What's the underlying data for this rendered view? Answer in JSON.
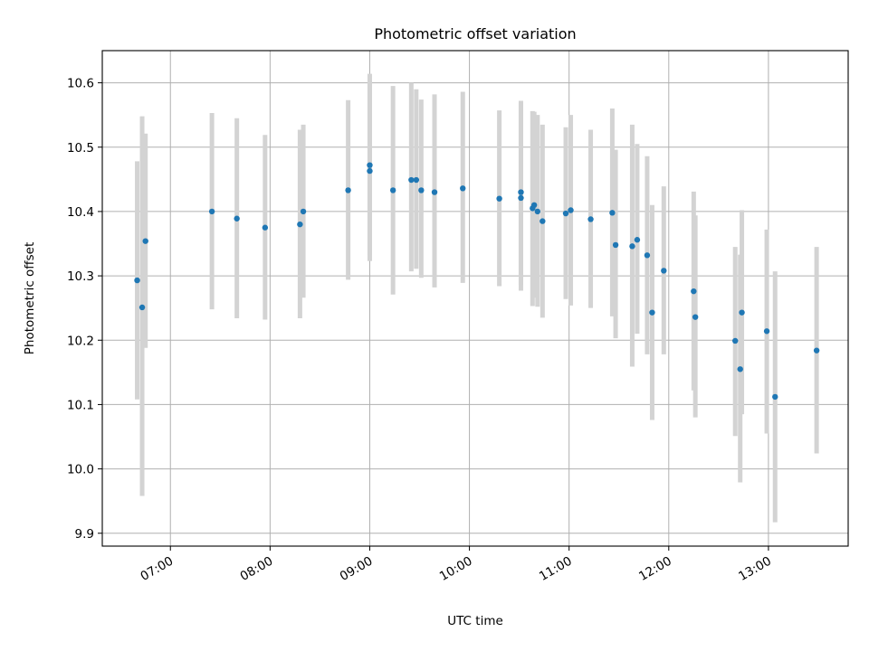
{
  "chart_data": {
    "type": "scatter",
    "title": "Photometric offset variation",
    "xlabel": "UTC time",
    "ylabel": "Photometric offset",
    "x_ticks": [
      "07:00",
      "08:00",
      "09:00",
      "10:00",
      "11:00",
      "12:00",
      "13:00"
    ],
    "y_ticks": [
      "9.9",
      "10.0",
      "10.1",
      "10.2",
      "10.3",
      "10.4",
      "10.5",
      "10.6"
    ],
    "xlim": [
      "06:19",
      "13:48"
    ],
    "ylim": [
      9.88,
      10.65
    ],
    "grid": true,
    "colors": {
      "points": "#1f77b4",
      "errorbars": "#d3d3d3"
    },
    "series": [
      {
        "x": [
          "06:40",
          "06:43",
          "06:45",
          "07:25",
          "07:40",
          "07:57",
          "08:18",
          "08:20",
          "08:47",
          "09:00",
          "09:00",
          "09:14",
          "09:25",
          "09:28",
          "09:31",
          "09:39",
          "09:56",
          "10:18",
          "10:31",
          "10:31",
          "10:38",
          "10:39",
          "10:41",
          "10:44",
          "10:58",
          "11:01",
          "11:13",
          "11:26",
          "11:28",
          "11:38",
          "11:41",
          "11:47",
          "11:50",
          "11:57",
          "12:15",
          "12:16",
          "12:40",
          "12:43",
          "12:44",
          "12:59",
          "13:04",
          "13:29"
        ],
        "y": [
          10.293,
          10.251,
          10.354,
          10.4,
          10.389,
          10.375,
          10.38,
          10.4,
          10.433,
          10.463,
          10.472,
          10.433,
          10.449,
          10.449,
          10.433,
          10.43,
          10.436,
          10.42,
          10.421,
          10.43,
          10.405,
          10.41,
          10.4,
          10.385,
          10.397,
          10.402,
          10.388,
          10.398,
          10.348,
          10.346,
          10.356,
          10.332,
          10.243,
          10.308,
          10.276,
          10.236,
          10.199,
          10.155,
          10.243,
          10.214,
          10.112,
          10.184
        ],
        "yerr_low": [
          10.108,
          9.958,
          10.188,
          10.248,
          10.234,
          10.232,
          10.234,
          10.266,
          10.294,
          10.323,
          10.332,
          10.271,
          10.307,
          10.311,
          10.297,
          10.282,
          10.289,
          10.284,
          10.277,
          10.286,
          10.253,
          10.266,
          10.252,
          10.235,
          10.264,
          10.254,
          10.25,
          10.237,
          10.203,
          10.159,
          10.21,
          10.178,
          10.076,
          10.178,
          10.122,
          10.08,
          10.051,
          9.979,
          10.085,
          10.055,
          9.917,
          10.024
        ],
        "yerr_high": [
          10.478,
          10.548,
          10.521,
          10.553,
          10.545,
          10.519,
          10.527,
          10.535,
          10.573,
          10.602,
          10.614,
          10.595,
          10.6,
          10.59,
          10.574,
          10.582,
          10.586,
          10.557,
          10.569,
          10.572,
          10.556,
          10.555,
          10.55,
          10.535,
          10.531,
          10.55,
          10.527,
          10.56,
          10.496,
          10.535,
          10.505,
          10.486,
          10.41,
          10.439,
          10.431,
          10.394,
          10.345,
          10.333,
          10.402,
          10.372,
          10.307,
          10.345
        ]
      }
    ]
  }
}
